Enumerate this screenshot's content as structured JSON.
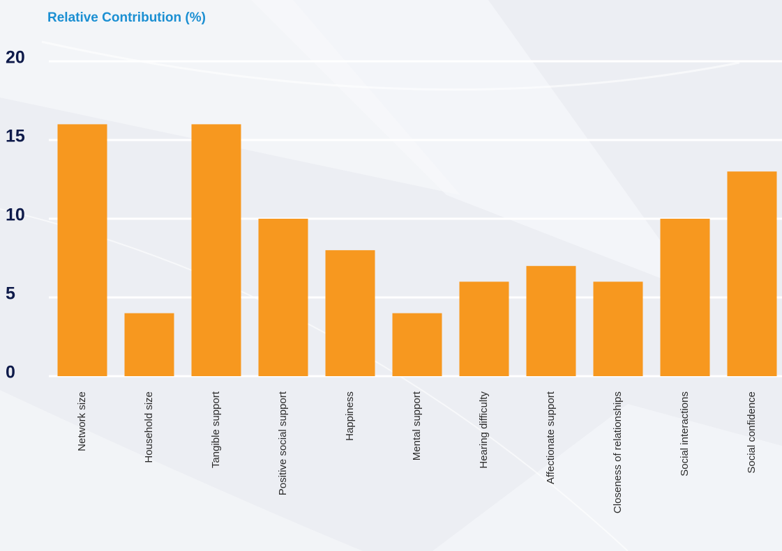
{
  "chart_data": {
    "type": "bar",
    "title": "Relative Contribution (%)",
    "categories": [
      "Network size",
      "Household size",
      "Tangible support",
      "Positive social support",
      "Happiness",
      "Mental support",
      "Hearing difficulty",
      "Affectionate support",
      "Closeness of relationships",
      "Social interactions",
      "Social confidence"
    ],
    "values": [
      16,
      4,
      16,
      10,
      8,
      4,
      6,
      7,
      6,
      10,
      13
    ],
    "color": "#f7981f",
    "ylim": [
      0,
      20
    ],
    "yticks": [
      0,
      5,
      10,
      15,
      20
    ],
    "grid": true
  }
}
